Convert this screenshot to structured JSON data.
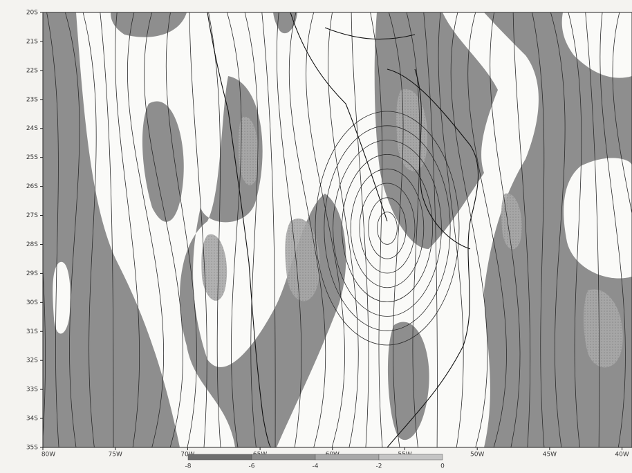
{
  "map": {
    "y_labels": [
      "20S",
      "21S",
      "22S",
      "23S",
      "24S",
      "25S",
      "26S",
      "27S",
      "28S",
      "29S",
      "30S",
      "31S",
      "32S",
      "33S",
      "34S",
      "35S"
    ],
    "x_labels": [
      "80W",
      "75W",
      "70W",
      "65W",
      "60W",
      "55W",
      "50W",
      "45W",
      "40W"
    ],
    "colorbar": {
      "labels": [
        -8,
        -6,
        -4,
        -2,
        0
      ],
      "colors": [
        "#6e6e6e",
        "#8c8c8c",
        "#a8a8a8",
        "#c4c4c4"
      ]
    }
  }
}
